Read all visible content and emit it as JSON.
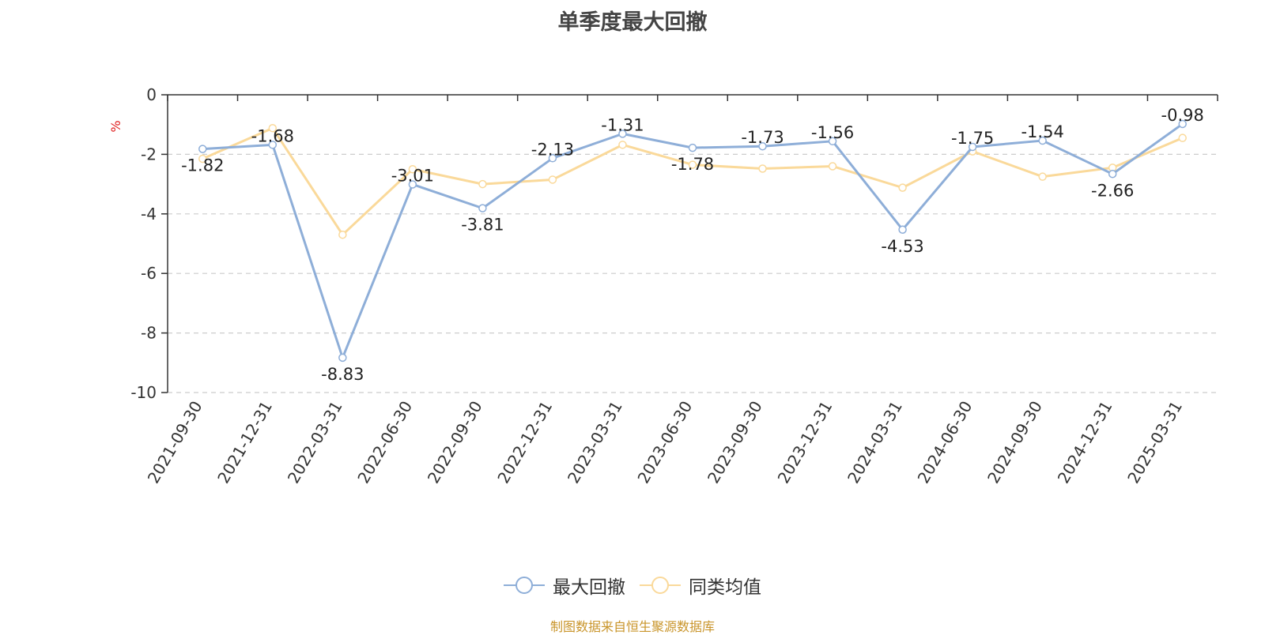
{
  "chart_data": {
    "type": "line",
    "title": "单季度最大回撤",
    "ylabel": "%",
    "ylim": [
      -10,
      0
    ],
    "yticks": [
      0,
      -2,
      -4,
      -6,
      -8,
      -10
    ],
    "grid": true,
    "legend_position": "bottom-center",
    "categories": [
      "2021-09-30",
      "2021-12-31",
      "2022-03-31",
      "2022-06-30",
      "2022-09-30",
      "2022-12-31",
      "2023-03-31",
      "2023-06-30",
      "2023-09-30",
      "2023-12-31",
      "2024-03-31",
      "2024-06-30",
      "2024-09-30",
      "2024-12-31",
      "2025-03-31"
    ],
    "series": [
      {
        "name": "最大回撤",
        "color": "#8eaed8",
        "show_labels": true,
        "values": [
          -1.82,
          -1.68,
          -8.83,
          -3.01,
          -3.81,
          -2.13,
          -1.31,
          -1.78,
          -1.73,
          -1.56,
          -4.53,
          -1.75,
          -1.54,
          -2.66,
          -0.98
        ]
      },
      {
        "name": "同类均值",
        "color": "#fad99a",
        "show_labels": false,
        "values": [
          -2.15,
          -1.12,
          -4.7,
          -2.5,
          -3.0,
          -2.85,
          -1.68,
          -2.35,
          -2.48,
          -2.4,
          -3.12,
          -1.9,
          -2.75,
          -2.45,
          -1.45
        ]
      }
    ]
  },
  "source_note": "制图数据来自恒生聚源数据库"
}
